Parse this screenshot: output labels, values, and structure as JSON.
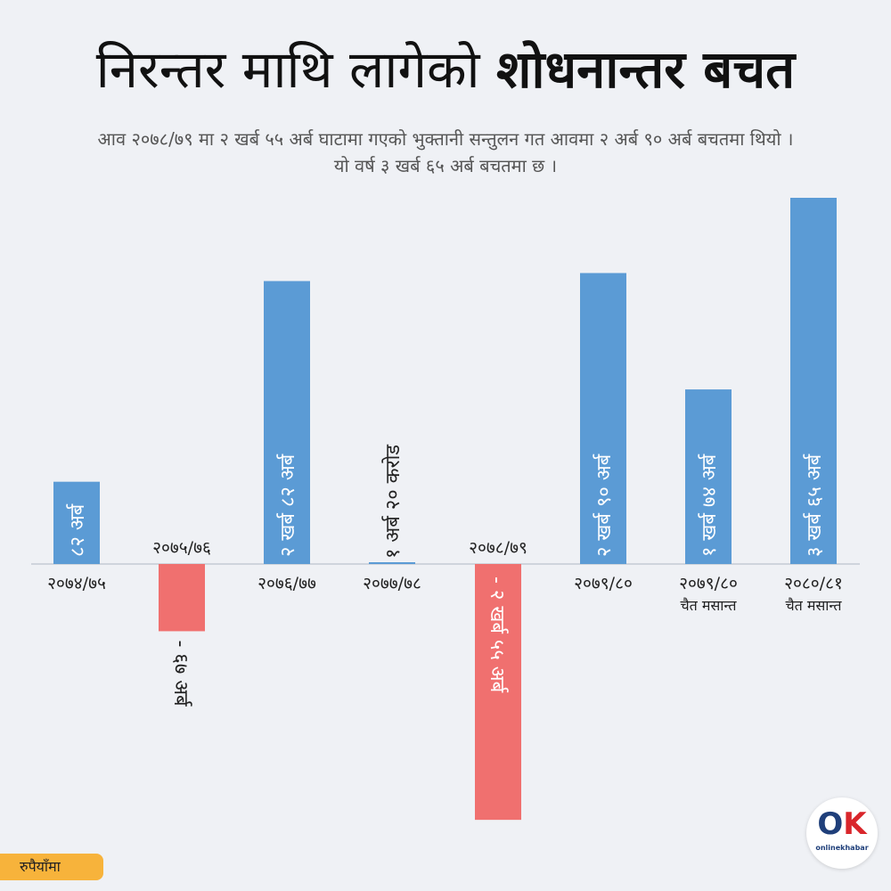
{
  "header": {
    "title_regular": "निरन्तर माथि लागेको",
    "title_bold": "शोधनान्तर बचत",
    "subtitle_line1": "आव २०७८/७९ मा २ खर्ब ५५ अर्ब घाटामा गएको भुक्तानी सन्तुलन गत आवमा २ अर्ब ९० अर्ब बचतमा थियो ।",
    "subtitle_line2": "यो वर्ष ३ खर्ब ६५ अर्ब बचतमा छ ।"
  },
  "chart_data": {
    "type": "bar",
    "value_unit": "अर्ब",
    "categories": [
      [
        "२०७४/७५"
      ],
      [
        "२०७५/७६"
      ],
      [
        "२०७६/७७"
      ],
      [
        "२०७७/७८"
      ],
      [
        "२०७८/७९"
      ],
      [
        "२०७९/८०"
      ],
      [
        "२०७९/८०",
        "चैत मसान्त"
      ],
      [
        "२०८०/८१",
        "चैत मसान्त"
      ]
    ],
    "values": [
      82,
      -67,
      282,
      1.2,
      -255,
      290,
      174,
      365
    ],
    "value_labels": [
      "८२ अर्ब",
      "- ६७ अर्ब",
      "२ खर्ब ८२ अर्ब",
      "१ अर्ब २० करोड",
      "- २ खर्ब ५५ अर्ब",
      "२ खर्ब ९० अर्ब",
      "१ खर्ब ७४ अर्ब",
      "३ खर्ब ६५ अर्ब"
    ],
    "colors": {
      "positive": "#5b9bd5",
      "negative": "#f0706f",
      "axis": "#cfd4dc"
    }
  },
  "footer": {
    "unit_label": "रुपैयाँमा",
    "logo_mark_o": "O",
    "logo_mark_k": "K",
    "logo_text": "onlinekhabar"
  }
}
